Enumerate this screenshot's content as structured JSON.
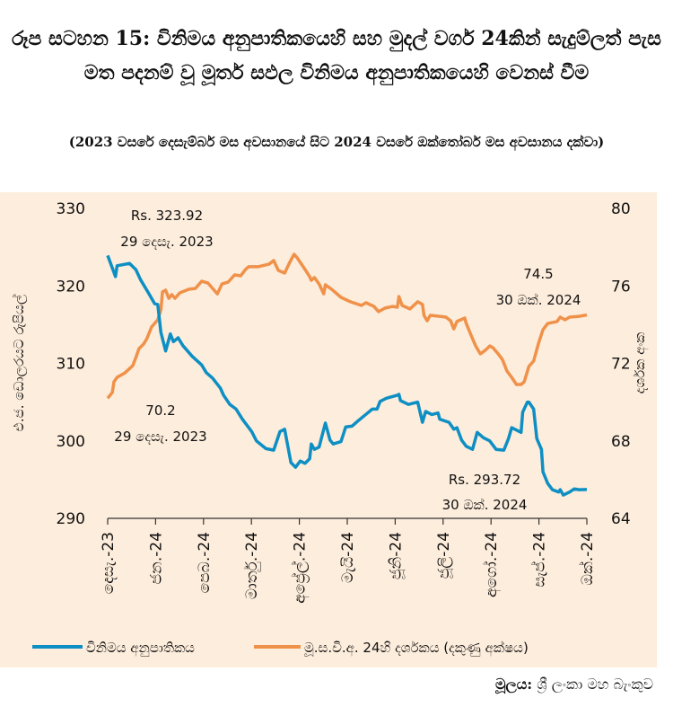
{
  "title": "රූප සටහන 15: විනිමය අනුපාතිකයෙහි සහ මුදල් වර්ග 24කින් සැදුම්ලත් පැස මත පදනම් වූ මූර්ත සඵල විනිමය අනුපාතිකයෙහි වෙනස් වීම",
  "subtitle": "(2023 වසරේ දෙසැම්බර් මස අවසානයේ සිට 2024 වසරේ ඔක්තෝබර් මස අවසානය දක්වා)",
  "source_label": "මූලය:",
  "source": "ශ්‍රී ලංකා මහ බැංකුව",
  "chart_data": {
    "type": "line",
    "background": "#FDEDDC",
    "xlim": [
      "2023-12-29",
      "2024-10-30"
    ],
    "x_ticks": [
      "2023-12-29",
      "2024-01-30",
      "2024-02-29",
      "2024-03-31",
      "2024-04-30",
      "2024-05-31",
      "2024-06-30",
      "2024-07-31",
      "2024-08-31",
      "2024-09-30",
      "2024-10-30"
    ],
    "x_tick_labels": [
      "දෙසැ.-23",
      "ජන.-24",
      "පෙබ.-24",
      "මාර්තු.-24",
      "අප්‍රේල්.-24",
      "මැයි-24",
      "ජූනි-24",
      "ජූලි-24",
      "අගෝ.-24",
      "සැප්.-24",
      "ඔක්.-24"
    ],
    "y_left": {
      "label": "එ.ජ. ඩොලරයට රුපියල්",
      "ylim": [
        290,
        330
      ],
      "ticks": [
        290,
        300,
        310,
        320,
        330
      ]
    },
    "y_right": {
      "label": "දර්ශක අංක",
      "ylim": [
        64,
        80
      ],
      "ticks": [
        64,
        68,
        72,
        76,
        80
      ]
    },
    "grid": false,
    "legend_position": "bottom",
    "series": [
      {
        "name": "විනිමය අනුපාතිකය",
        "axis": "left",
        "color": "#0E8FC4",
        "points": [
          [
            "2023-12-29",
            323.92
          ],
          [
            "2024-01-03",
            321.2
          ],
          [
            "2024-01-04",
            322.6
          ],
          [
            "2024-01-12",
            322.9
          ],
          [
            "2024-01-16",
            322.1
          ],
          [
            "2024-01-19",
            320.8
          ],
          [
            "2024-01-24",
            319.1
          ],
          [
            "2024-01-28",
            317.7
          ],
          [
            "2024-01-30",
            317.6
          ],
          [
            "2024-02-01",
            314.0
          ],
          [
            "2024-02-04",
            311.6
          ],
          [
            "2024-02-07",
            313.8
          ],
          [
            "2024-02-09",
            312.8
          ],
          [
            "2024-02-12",
            313.3
          ],
          [
            "2024-02-15",
            312.3
          ],
          [
            "2024-02-21",
            310.9
          ],
          [
            "2024-02-27",
            309.8
          ],
          [
            "2024-03-01",
            308.8
          ],
          [
            "2024-03-05",
            308.1
          ],
          [
            "2024-03-10",
            306.8
          ],
          [
            "2024-03-12",
            305.9
          ],
          [
            "2024-03-16",
            304.7
          ],
          [
            "2024-03-20",
            304.1
          ],
          [
            "2024-03-24",
            302.8
          ],
          [
            "2024-03-30",
            301.2
          ],
          [
            "2024-04-02",
            300.0
          ],
          [
            "2024-04-08",
            299.0
          ],
          [
            "2024-04-13",
            298.8
          ],
          [
            "2024-04-17",
            301.2
          ],
          [
            "2024-04-20",
            301.5
          ],
          [
            "2024-04-24",
            297.2
          ],
          [
            "2024-04-27",
            296.6
          ],
          [
            "2024-04-30",
            297.4
          ],
          [
            "2024-05-03",
            297.1
          ],
          [
            "2024-05-06",
            297.7
          ],
          [
            "2024-05-07",
            299.6
          ],
          [
            "2024-05-09",
            298.9
          ],
          [
            "2024-05-12",
            299.2
          ],
          [
            "2024-05-16",
            302.3
          ],
          [
            "2024-05-19",
            300.1
          ],
          [
            "2024-05-21",
            299.6
          ],
          [
            "2024-05-26",
            299.9
          ],
          [
            "2024-05-29",
            301.8
          ],
          [
            "2024-06-02",
            301.9
          ],
          [
            "2024-06-06",
            302.6
          ],
          [
            "2024-06-12",
            303.6
          ],
          [
            "2024-06-15",
            304.1
          ],
          [
            "2024-06-18",
            304.1
          ],
          [
            "2024-06-20",
            305.1
          ],
          [
            "2024-06-24",
            305.5
          ],
          [
            "2024-07-01",
            305.9
          ],
          [
            "2024-07-02",
            306.0
          ],
          [
            "2024-07-03",
            305.2
          ],
          [
            "2024-07-08",
            304.7
          ],
          [
            "2024-07-14",
            305.0
          ],
          [
            "2024-07-17",
            302.4
          ],
          [
            "2024-07-19",
            303.8
          ],
          [
            "2024-07-23",
            303.4
          ],
          [
            "2024-07-27",
            303.6
          ],
          [
            "2024-07-28",
            302.8
          ],
          [
            "2024-08-03",
            302.4
          ],
          [
            "2024-08-06",
            301.5
          ],
          [
            "2024-08-08",
            301.7
          ],
          [
            "2024-08-11",
            300.1
          ],
          [
            "2024-08-14",
            299.3
          ],
          [
            "2024-08-18",
            298.9
          ],
          [
            "2024-08-21",
            301.1
          ],
          [
            "2024-08-25",
            300.4
          ],
          [
            "2024-08-29",
            300.0
          ],
          [
            "2024-09-02",
            298.9
          ],
          [
            "2024-09-07",
            298.8
          ],
          [
            "2024-09-10",
            300.3
          ],
          [
            "2024-09-12",
            301.7
          ],
          [
            "2024-09-18",
            301.1
          ],
          [
            "2024-09-19",
            303.7
          ],
          [
            "2024-09-22",
            305.0
          ],
          [
            "2024-09-23",
            305.0
          ],
          [
            "2024-09-26",
            304.1
          ],
          [
            "2024-09-28",
            300.3
          ],
          [
            "2024-10-01",
            298.9
          ],
          [
            "2024-10-02",
            296.0
          ],
          [
            "2024-10-05",
            294.5
          ],
          [
            "2024-10-08",
            293.7
          ],
          [
            "2024-10-12",
            293.4
          ],
          [
            "2024-10-13",
            293.7
          ],
          [
            "2024-10-15",
            293.0
          ],
          [
            "2024-10-19",
            293.4
          ],
          [
            "2024-10-22",
            293.8
          ],
          [
            "2024-10-25",
            293.7
          ],
          [
            "2024-10-30",
            293.72
          ]
        ]
      },
      {
        "name": "මූ.ස.වි.අ. 24හි දර්ශකය (දකුණු අක්ෂය)",
        "axis": "right",
        "color": "#F0914A",
        "points": [
          [
            "2023-12-29",
            70.2
          ],
          [
            "2024-01-01",
            70.5
          ],
          [
            "2024-01-02",
            71.05
          ],
          [
            "2024-01-04",
            71.28
          ],
          [
            "2024-01-09",
            71.51
          ],
          [
            "2024-01-14",
            71.88
          ],
          [
            "2024-01-16",
            72.3
          ],
          [
            "2024-01-18",
            72.76
          ],
          [
            "2024-01-21",
            73.0
          ],
          [
            "2024-01-23",
            73.27
          ],
          [
            "2024-01-26",
            73.88
          ],
          [
            "2024-01-30",
            74.25
          ],
          [
            "2024-02-01",
            74.76
          ],
          [
            "2024-02-02",
            75.69
          ],
          [
            "2024-02-04",
            75.78
          ],
          [
            "2024-02-06",
            75.36
          ],
          [
            "2024-02-08",
            75.55
          ],
          [
            "2024-02-10",
            75.36
          ],
          [
            "2024-02-13",
            75.64
          ],
          [
            "2024-02-19",
            75.83
          ],
          [
            "2024-02-23",
            75.87
          ],
          [
            "2024-02-27",
            76.24
          ],
          [
            "2024-03-02",
            76.15
          ],
          [
            "2024-03-08",
            75.59
          ],
          [
            "2024-03-11",
            76.1
          ],
          [
            "2024-03-15",
            76.2
          ],
          [
            "2024-03-19",
            76.57
          ],
          [
            "2024-03-23",
            76.52
          ],
          [
            "2024-03-26",
            76.85
          ],
          [
            "2024-03-28",
            76.99
          ],
          [
            "2024-04-03",
            76.99
          ],
          [
            "2024-04-10",
            77.12
          ],
          [
            "2024-04-13",
            77.31
          ],
          [
            "2024-04-16",
            76.8
          ],
          [
            "2024-04-20",
            76.66
          ],
          [
            "2024-04-23",
            77.17
          ],
          [
            "2024-04-26",
            77.63
          ],
          [
            "2024-04-28",
            77.45
          ],
          [
            "2024-05-03",
            76.85
          ],
          [
            "2024-05-06",
            76.48
          ],
          [
            "2024-05-07",
            76.29
          ],
          [
            "2024-05-09",
            76.43
          ],
          [
            "2024-05-12",
            76.1
          ],
          [
            "2024-05-15",
            75.59
          ],
          [
            "2024-05-16",
            76.06
          ],
          [
            "2024-05-20",
            75.83
          ],
          [
            "2024-05-26",
            75.41
          ],
          [
            "2024-06-01",
            75.18
          ],
          [
            "2024-06-08",
            74.99
          ],
          [
            "2024-06-11",
            75.13
          ],
          [
            "2024-06-16",
            74.94
          ],
          [
            "2024-06-19",
            74.67
          ],
          [
            "2024-06-23",
            74.85
          ],
          [
            "2024-06-28",
            74.94
          ],
          [
            "2024-07-01",
            74.9
          ],
          [
            "2024-07-02",
            75.45
          ],
          [
            "2024-07-04",
            74.99
          ],
          [
            "2024-07-09",
            74.81
          ],
          [
            "2024-07-14",
            75.18
          ],
          [
            "2024-07-17",
            75.04
          ],
          [
            "2024-07-18",
            74.48
          ],
          [
            "2024-07-20",
            74.2
          ],
          [
            "2024-07-22",
            74.48
          ],
          [
            "2024-07-28",
            74.43
          ],
          [
            "2024-08-01",
            74.39
          ],
          [
            "2024-08-04",
            74.2
          ],
          [
            "2024-08-06",
            73.78
          ],
          [
            "2024-08-08",
            74.16
          ],
          [
            "2024-08-13",
            74.34
          ],
          [
            "2024-08-14",
            74.06
          ],
          [
            "2024-08-17",
            73.46
          ],
          [
            "2024-08-20",
            72.9
          ],
          [
            "2024-08-23",
            72.49
          ],
          [
            "2024-08-26",
            72.67
          ],
          [
            "2024-08-29",
            72.9
          ],
          [
            "2024-08-31",
            72.81
          ],
          [
            "2024-09-03",
            72.53
          ],
          [
            "2024-09-06",
            72.21
          ],
          [
            "2024-09-09",
            71.6
          ],
          [
            "2024-09-12",
            71.28
          ],
          [
            "2024-09-15",
            70.91
          ],
          [
            "2024-09-18",
            70.91
          ],
          [
            "2024-09-20",
            71.05
          ],
          [
            "2024-09-23",
            71.84
          ],
          [
            "2024-09-26",
            72.12
          ],
          [
            "2024-09-29",
            73.0
          ],
          [
            "2024-10-02",
            73.74
          ],
          [
            "2024-10-05",
            74.06
          ],
          [
            "2024-10-11",
            74.16
          ],
          [
            "2024-10-13",
            74.39
          ],
          [
            "2024-10-16",
            74.25
          ],
          [
            "2024-10-19",
            74.39
          ],
          [
            "2024-10-25",
            74.43
          ],
          [
            "2024-10-30",
            74.5
          ]
        ]
      }
    ],
    "annotations": [
      {
        "line1": "Rs. 323.92",
        "line2": "29 දෙසැ. 2023"
      },
      {
        "line1": "70.2",
        "line2": "29 දෙසැ. 2023"
      },
      {
        "line1": "74.5",
        "line2": "30 ඔක්. 2024"
      },
      {
        "line1": "Rs. 293.72",
        "line2": "30 ඔක්. 2024"
      }
    ]
  }
}
